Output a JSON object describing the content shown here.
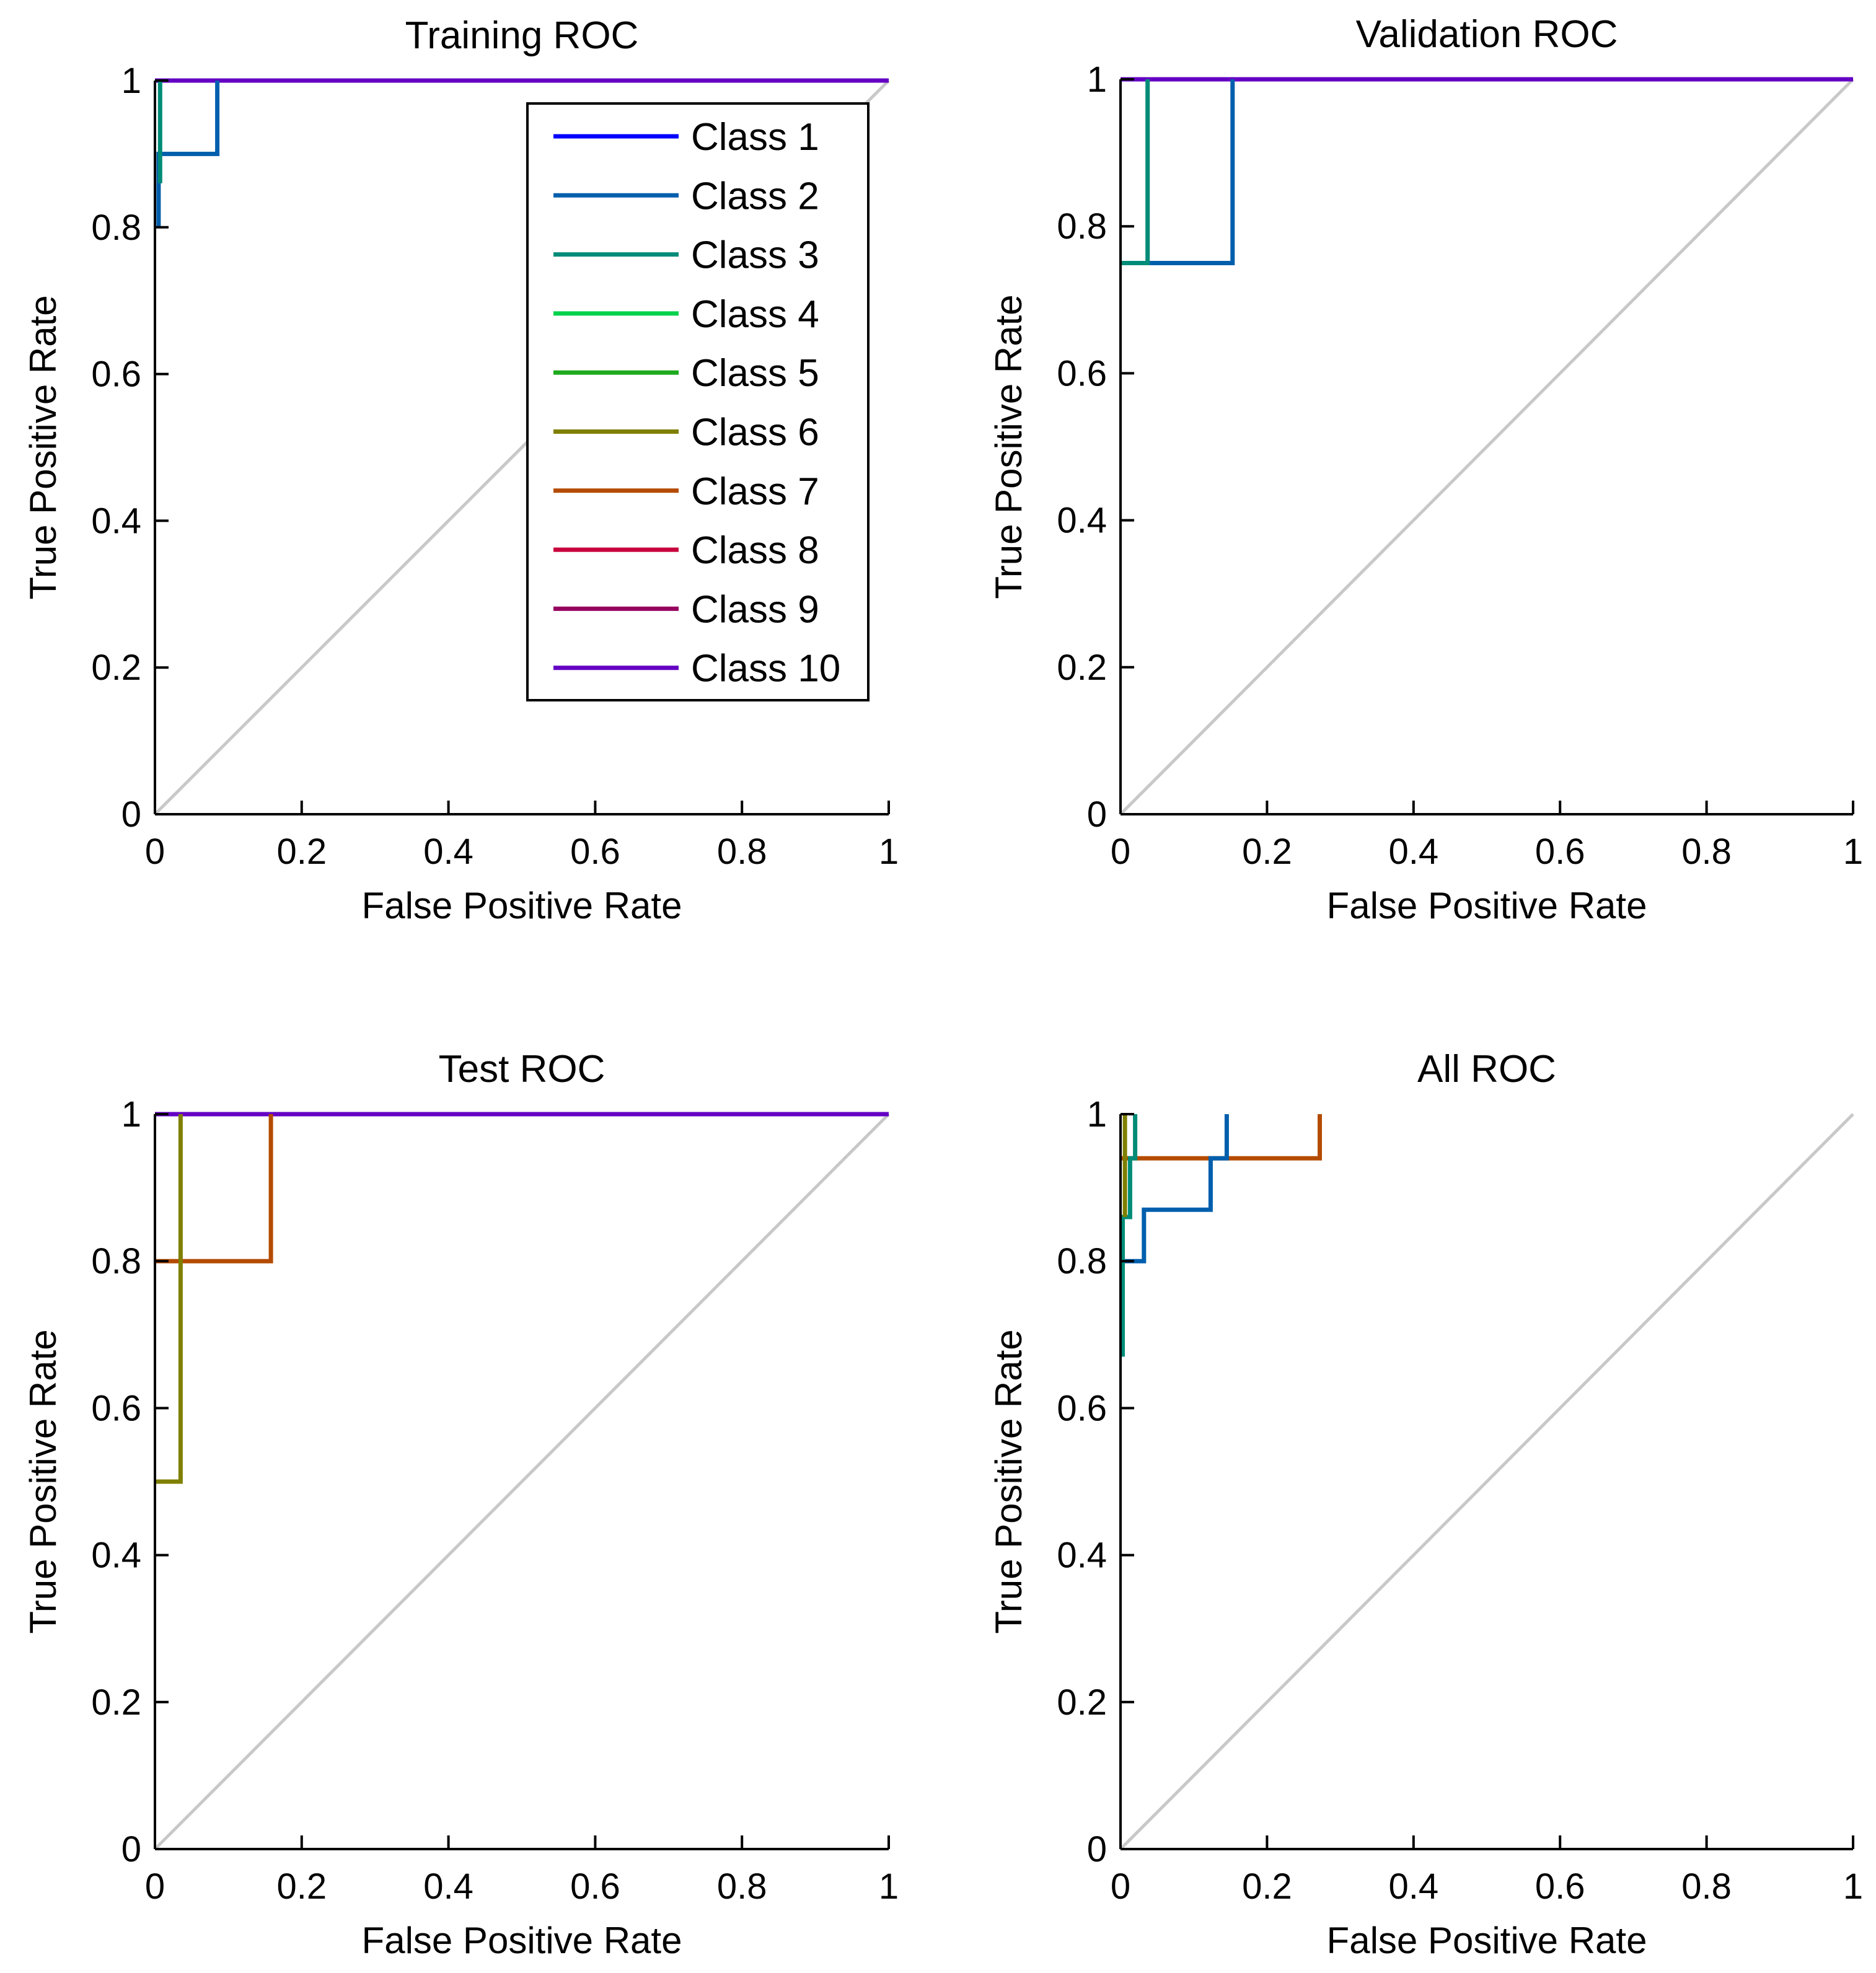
{
  "colors": {
    "diagonal": "#c8c8c8",
    "axis": "#000000",
    "background": "#ffffff",
    "class_colors": [
      "#0000ff",
      "#005fad",
      "#008c78",
      "#00d24b",
      "#1eaa1e",
      "#7f7f00",
      "#b44b00",
      "#c8003c",
      "#96005f",
      "#6400c3"
    ]
  },
  "chart_data": [
    {
      "type": "line",
      "title": "Training ROC",
      "xlabel": "False Positive Rate",
      "ylabel": "True Positive Rate",
      "xlim": [
        0,
        1
      ],
      "ylim": [
        0,
        1
      ],
      "xticks": [
        "0",
        "0.2",
        "0.4",
        "0.6",
        "0.8",
        "1"
      ],
      "yticks": [
        "0",
        "0.2",
        "0.4",
        "0.6",
        "0.8",
        "1"
      ],
      "legend": {
        "position": "upper-right",
        "entries": [
          "Class 1",
          "Class 2",
          "Class 3",
          "Class 4",
          "Class 5",
          "Class 6",
          "Class 7",
          "Class 8",
          "Class 9",
          "Class 10"
        ]
      },
      "series": [
        {
          "name": "Class 10",
          "color_index": 9,
          "points": [
            [
              0,
              1
            ],
            [
              1,
              1
            ]
          ]
        },
        {
          "name": "Class 2",
          "color_index": 1,
          "points": [
            [
              0.005,
              0.8
            ],
            [
              0.005,
              0.9
            ],
            [
              0.085,
              0.9
            ],
            [
              0.085,
              1
            ]
          ]
        },
        {
          "name": "Class 3",
          "color_index": 2,
          "points": [
            [
              0.007,
              0.86
            ],
            [
              0.007,
              1
            ]
          ]
        }
      ]
    },
    {
      "type": "line",
      "title": "Validation ROC",
      "xlabel": "False Positive Rate",
      "ylabel": "True Positive Rate",
      "xlim": [
        0,
        1
      ],
      "ylim": [
        0,
        1
      ],
      "xticks": [
        "0",
        "0.2",
        "0.4",
        "0.6",
        "0.8",
        "1"
      ],
      "yticks": [
        "0",
        "0.2",
        "0.4",
        "0.6",
        "0.8",
        "1"
      ],
      "series": [
        {
          "name": "Class 10",
          "color_index": 9,
          "points": [
            [
              0,
              1
            ],
            [
              1,
              1
            ]
          ]
        },
        {
          "name": "Class 2",
          "color_index": 1,
          "points": [
            [
              0,
              0.75
            ],
            [
              0.153,
              0.75
            ],
            [
              0.153,
              1
            ]
          ]
        },
        {
          "name": "Class 3",
          "color_index": 2,
          "points": [
            [
              0,
              0.75
            ],
            [
              0.037,
              0.75
            ],
            [
              0.037,
              1
            ]
          ]
        }
      ]
    },
    {
      "type": "line",
      "title": "Test ROC",
      "xlabel": "False Positive Rate",
      "ylabel": "True Positive Rate",
      "xlim": [
        0,
        1
      ],
      "ylim": [
        0,
        1
      ],
      "xticks": [
        "0",
        "0.2",
        "0.4",
        "0.6",
        "0.8",
        "1"
      ],
      "yticks": [
        "0",
        "0.2",
        "0.4",
        "0.6",
        "0.8",
        "1"
      ],
      "series": [
        {
          "name": "Class 10",
          "color_index": 9,
          "points": [
            [
              0,
              1
            ],
            [
              1,
              1
            ]
          ]
        },
        {
          "name": "Class 7",
          "color_index": 6,
          "points": [
            [
              0,
              0.8
            ],
            [
              0.158,
              0.8
            ],
            [
              0.158,
              1
            ]
          ]
        },
        {
          "name": "Class 6",
          "color_index": 5,
          "points": [
            [
              0,
              0.5
            ],
            [
              0.035,
              0.5
            ],
            [
              0.035,
              1
            ]
          ]
        }
      ]
    },
    {
      "type": "line",
      "title": "All ROC",
      "xlabel": "False Positive Rate",
      "ylabel": "True Positive Rate",
      "xlim": [
        0,
        1
      ],
      "ylim": [
        0,
        1
      ],
      "xticks": [
        "0",
        "0.2",
        "0.4",
        "0.6",
        "0.8",
        "1"
      ],
      "yticks": [
        "0",
        "0.2",
        "0.4",
        "0.6",
        "0.8",
        "1"
      ],
      "series": [
        {
          "name": "Class 7",
          "color_index": 6,
          "points": [
            [
              0,
              0.94
            ],
            [
              0.272,
              0.94
            ],
            [
              0.272,
              1
            ]
          ]
        },
        {
          "name": "Class 2",
          "color_index": 1,
          "points": [
            [
              0.005,
              0.8
            ],
            [
              0.032,
              0.8
            ],
            [
              0.032,
              0.87
            ],
            [
              0.123,
              0.87
            ],
            [
              0.123,
              0.94
            ],
            [
              0.145,
              0.94
            ],
            [
              0.145,
              1
            ]
          ]
        },
        {
          "name": "Class 3",
          "color_index": 2,
          "points": [
            [
              0.003,
              0.67
            ],
            [
              0.003,
              0.86
            ],
            [
              0.013,
              0.86
            ],
            [
              0.013,
              0.94
            ],
            [
              0.02,
              0.94
            ],
            [
              0.02,
              1
            ]
          ]
        },
        {
          "name": "Class 6",
          "color_index": 5,
          "points": [
            [
              0.006,
              0.86
            ],
            [
              0.006,
              1
            ]
          ]
        }
      ]
    }
  ]
}
